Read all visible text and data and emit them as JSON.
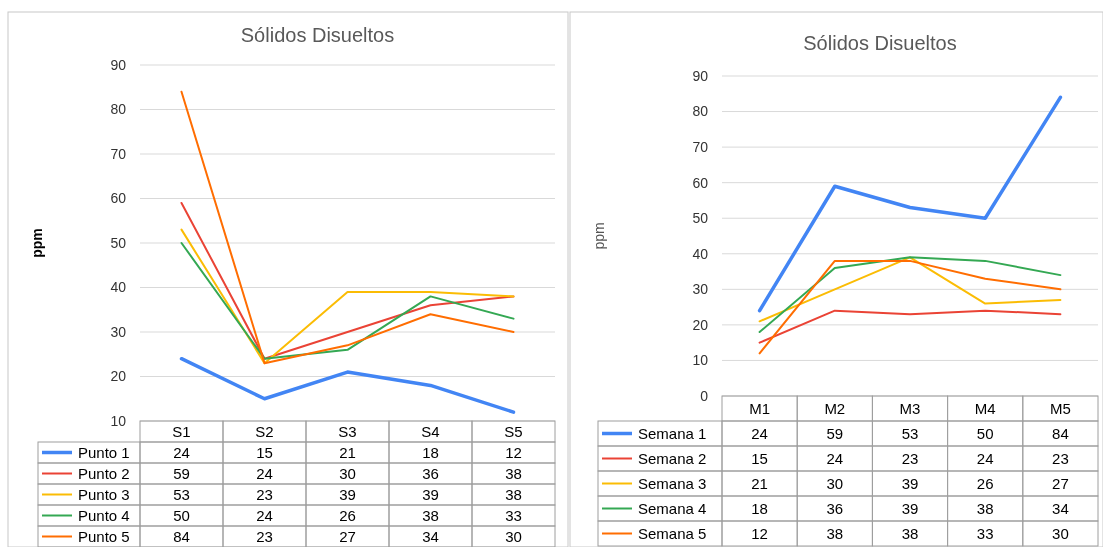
{
  "chart_data": [
    {
      "type": "line",
      "title": "Sólidos Disueltos",
      "ylabel": "ppm",
      "categories": [
        "S1",
        "S2",
        "S3",
        "S4",
        "S5"
      ],
      "ylim": [
        10,
        90
      ],
      "yticks": [
        10,
        20,
        30,
        40,
        50,
        60,
        70,
        80,
        90
      ],
      "grid": "y",
      "legend": "bottom",
      "data_labels": true,
      "series": [
        {
          "name": "Punto 1",
          "color": "#4285f4",
          "values": [
            24,
            15,
            21,
            18,
            12
          ]
        },
        {
          "name": "Punto 2",
          "color": "#ea4335",
          "values": [
            59,
            24,
            30,
            36,
            38
          ]
        },
        {
          "name": "Punto 3",
          "color": "#fbbc04",
          "values": [
            53,
            23,
            39,
            39,
            38
          ]
        },
        {
          "name": "Punto 4",
          "color": "#34a853",
          "values": [
            50,
            24,
            26,
            38,
            33
          ]
        },
        {
          "name": "Punto 5",
          "color": "#ff6d01",
          "values": [
            84,
            23,
            27,
            34,
            30
          ]
        }
      ]
    },
    {
      "type": "line",
      "title": "Sólidos Disueltos",
      "ylabel": "ppm",
      "categories": [
        "M1",
        "M2",
        "M3",
        "M4",
        "M5"
      ],
      "ylim": [
        0,
        90
      ],
      "yticks": [
        0,
        10,
        20,
        30,
        40,
        50,
        60,
        70,
        80,
        90
      ],
      "grid": "y",
      "legend": "bottom",
      "data_labels": true,
      "series": [
        {
          "name": "Semana 1",
          "color": "#4285f4",
          "values": [
            24,
            59,
            53,
            50,
            84
          ]
        },
        {
          "name": "Semana 2",
          "color": "#ea4335",
          "values": [
            15,
            24,
            23,
            24,
            23
          ]
        },
        {
          "name": "Semana 3",
          "color": "#fbbc04",
          "values": [
            21,
            30,
            39,
            26,
            27
          ]
        },
        {
          "name": "Semana 4",
          "color": "#34a853",
          "values": [
            18,
            36,
            39,
            38,
            34
          ]
        },
        {
          "name": "Semana 5",
          "color": "#ff6d01",
          "values": [
            12,
            38,
            38,
            33,
            30
          ]
        }
      ]
    }
  ]
}
